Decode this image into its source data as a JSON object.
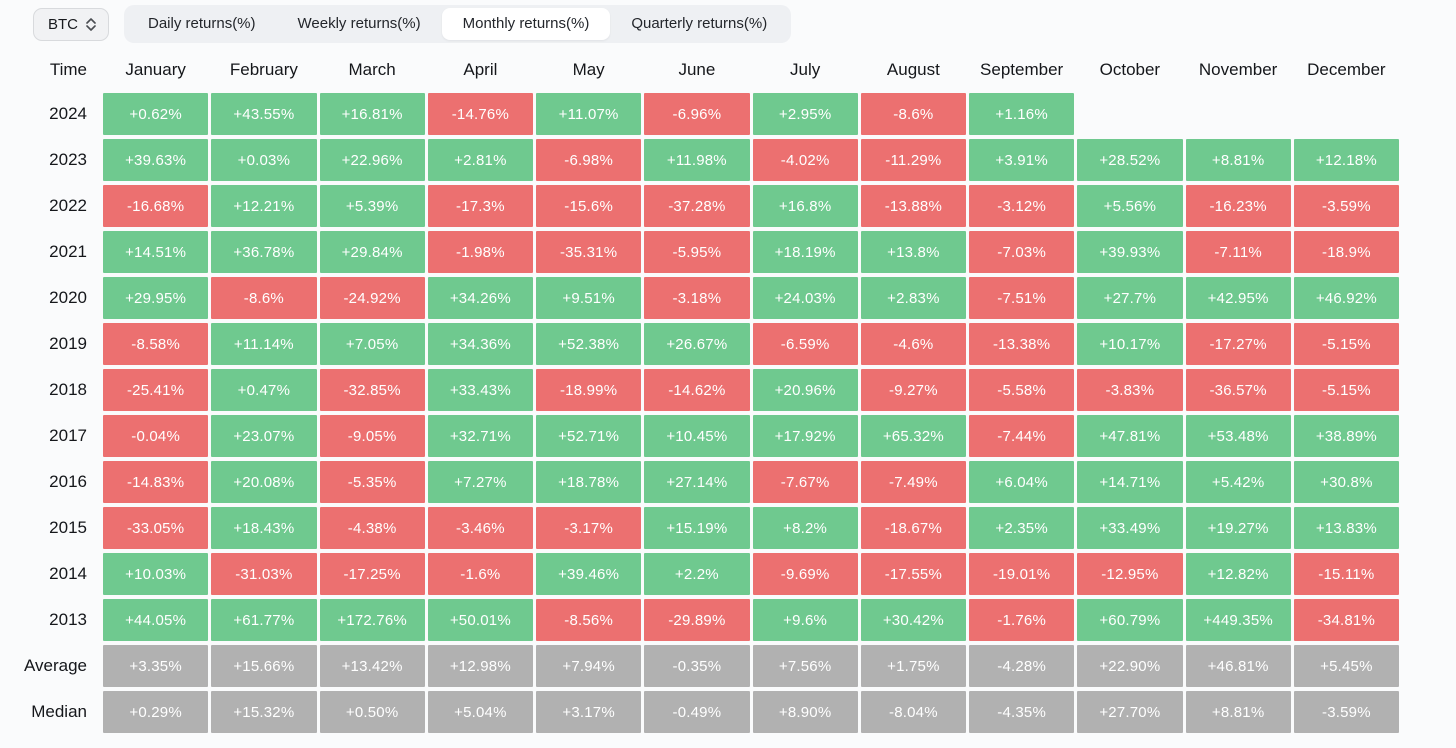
{
  "controls": {
    "symbol_label": "BTC",
    "tabs": [
      {
        "label": "Daily returns(%)",
        "active": false
      },
      {
        "label": "Weekly returns(%)",
        "active": false
      },
      {
        "label": "Monthly returns(%)",
        "active": true
      },
      {
        "label": "Quarterly returns(%)",
        "active": false
      }
    ]
  },
  "colors": {
    "positive": "#6fc98f",
    "negative": "#ec7070",
    "summary": "#b1b1b1"
  },
  "chart_data": {
    "type": "heatmap",
    "title": "BTC Monthly returns(%)",
    "row_label_header": "Time",
    "columns": [
      "January",
      "February",
      "March",
      "April",
      "May",
      "June",
      "July",
      "August",
      "September",
      "October",
      "November",
      "December"
    ],
    "rows": [
      {
        "label": "2024",
        "summary": false,
        "values": [
          "+0.62%",
          "+43.55%",
          "+16.81%",
          "-14.76%",
          "+11.07%",
          "-6.96%",
          "+2.95%",
          "-8.6%",
          "+1.16%",
          "",
          "",
          ""
        ]
      },
      {
        "label": "2023",
        "summary": false,
        "values": [
          "+39.63%",
          "+0.03%",
          "+22.96%",
          "+2.81%",
          "-6.98%",
          "+11.98%",
          "-4.02%",
          "-11.29%",
          "+3.91%",
          "+28.52%",
          "+8.81%",
          "+12.18%"
        ]
      },
      {
        "label": "2022",
        "summary": false,
        "values": [
          "-16.68%",
          "+12.21%",
          "+5.39%",
          "-17.3%",
          "-15.6%",
          "-37.28%",
          "+16.8%",
          "-13.88%",
          "-3.12%",
          "+5.56%",
          "-16.23%",
          "-3.59%"
        ]
      },
      {
        "label": "2021",
        "summary": false,
        "values": [
          "+14.51%",
          "+36.78%",
          "+29.84%",
          "-1.98%",
          "-35.31%",
          "-5.95%",
          "+18.19%",
          "+13.8%",
          "-7.03%",
          "+39.93%",
          "-7.11%",
          "-18.9%"
        ]
      },
      {
        "label": "2020",
        "summary": false,
        "values": [
          "+29.95%",
          "-8.6%",
          "-24.92%",
          "+34.26%",
          "+9.51%",
          "-3.18%",
          "+24.03%",
          "+2.83%",
          "-7.51%",
          "+27.7%",
          "+42.95%",
          "+46.92%"
        ]
      },
      {
        "label": "2019",
        "summary": false,
        "values": [
          "-8.58%",
          "+11.14%",
          "+7.05%",
          "+34.36%",
          "+52.38%",
          "+26.67%",
          "-6.59%",
          "-4.6%",
          "-13.38%",
          "+10.17%",
          "-17.27%",
          "-5.15%"
        ]
      },
      {
        "label": "2018",
        "summary": false,
        "values": [
          "-25.41%",
          "+0.47%",
          "-32.85%",
          "+33.43%",
          "-18.99%",
          "-14.62%",
          "+20.96%",
          "-9.27%",
          "-5.58%",
          "-3.83%",
          "-36.57%",
          "-5.15%"
        ]
      },
      {
        "label": "2017",
        "summary": false,
        "values": [
          "-0.04%",
          "+23.07%",
          "-9.05%",
          "+32.71%",
          "+52.71%",
          "+10.45%",
          "+17.92%",
          "+65.32%",
          "-7.44%",
          "+47.81%",
          "+53.48%",
          "+38.89%"
        ]
      },
      {
        "label": "2016",
        "summary": false,
        "values": [
          "-14.83%",
          "+20.08%",
          "-5.35%",
          "+7.27%",
          "+18.78%",
          "+27.14%",
          "-7.67%",
          "-7.49%",
          "+6.04%",
          "+14.71%",
          "+5.42%",
          "+30.8%"
        ]
      },
      {
        "label": "2015",
        "summary": false,
        "values": [
          "-33.05%",
          "+18.43%",
          "-4.38%",
          "-3.46%",
          "-3.17%",
          "+15.19%",
          "+8.2%",
          "-18.67%",
          "+2.35%",
          "+33.49%",
          "+19.27%",
          "+13.83%"
        ]
      },
      {
        "label": "2014",
        "summary": false,
        "values": [
          "+10.03%",
          "-31.03%",
          "-17.25%",
          "-1.6%",
          "+39.46%",
          "+2.2%",
          "-9.69%",
          "-17.55%",
          "-19.01%",
          "-12.95%",
          "+12.82%",
          "-15.11%"
        ]
      },
      {
        "label": "2013",
        "summary": false,
        "values": [
          "+44.05%",
          "+61.77%",
          "+172.76%",
          "+50.01%",
          "-8.56%",
          "-29.89%",
          "+9.6%",
          "+30.42%",
          "-1.76%",
          "+60.79%",
          "+449.35%",
          "-34.81%"
        ]
      },
      {
        "label": "Average",
        "summary": true,
        "values": [
          "+3.35%",
          "+15.66%",
          "+13.42%",
          "+12.98%",
          "+7.94%",
          "-0.35%",
          "+7.56%",
          "+1.75%",
          "-4.28%",
          "+22.90%",
          "+46.81%",
          "+5.45%"
        ]
      },
      {
        "label": "Median",
        "summary": true,
        "values": [
          "+0.29%",
          "+15.32%",
          "+0.50%",
          "+5.04%",
          "+3.17%",
          "-0.49%",
          "+8.90%",
          "-8.04%",
          "-4.35%",
          "+27.70%",
          "+8.81%",
          "-3.59%"
        ]
      }
    ]
  }
}
